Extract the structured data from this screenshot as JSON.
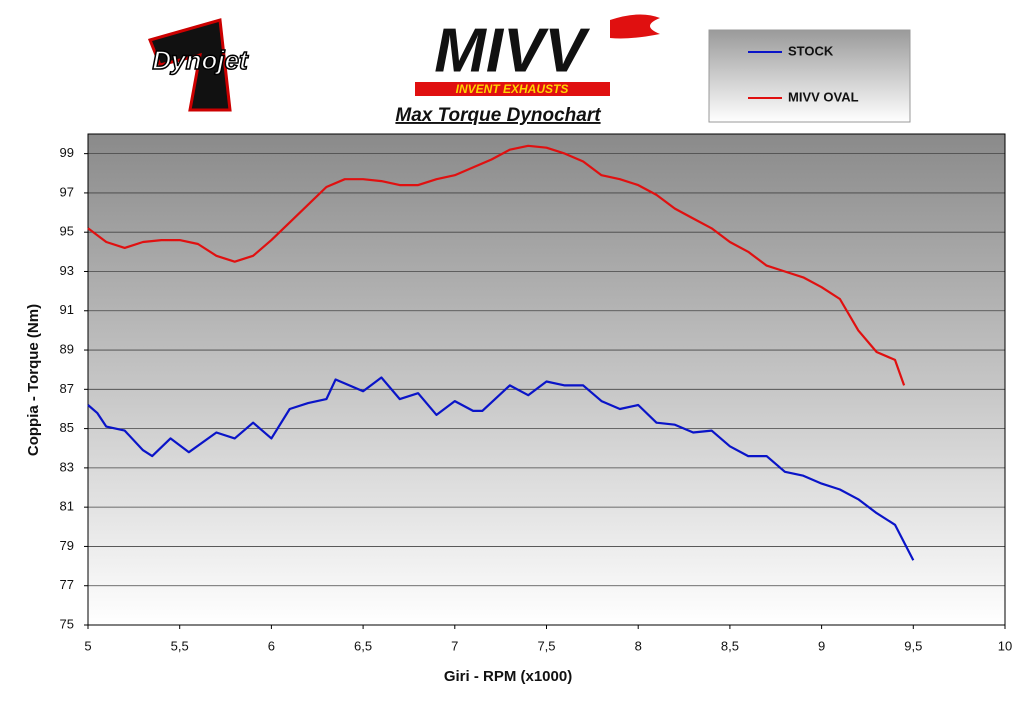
{
  "logos": {
    "left": "Dynojet",
    "brand": "MIVV",
    "brand_tagline": "INVENT EXHAUSTS"
  },
  "chart_data": {
    "type": "line",
    "title": "Max Torque Dynochart",
    "x_label": "Giri - RPM (x1000)",
    "y_label": "Coppia - Torque (Nm)",
    "xlim": [
      5,
      10
    ],
    "xticks": [
      5,
      {
        "value": 5.5,
        "label": "5,5"
      },
      6,
      {
        "value": 6.5,
        "label": "6,5"
      },
      7,
      {
        "value": 7.5,
        "label": "7,5"
      },
      8,
      {
        "value": 8.5,
        "label": "8,5"
      },
      9,
      {
        "value": 9.5,
        "label": "9,5"
      },
      10
    ],
    "ylim": [
      75,
      100
    ],
    "yticks": [
      75,
      77,
      79,
      81,
      83,
      85,
      87,
      89,
      91,
      93,
      95,
      97,
      99
    ],
    "grid": true,
    "legend": "top-right",
    "series": [
      {
        "name": "STOCK",
        "color": "#0a14c8",
        "x": [
          5.0,
          5.05,
          5.1,
          5.2,
          5.3,
          5.35,
          5.45,
          5.55,
          5.7,
          5.8,
          5.9,
          6.0,
          6.1,
          6.2,
          6.3,
          6.35,
          6.5,
          6.6,
          6.7,
          6.8,
          6.9,
          7.0,
          7.1,
          7.15,
          7.3,
          7.4,
          7.5,
          7.6,
          7.7,
          7.8,
          7.9,
          8.0,
          8.1,
          8.2,
          8.3,
          8.4,
          8.5,
          8.6,
          8.7,
          8.8,
          8.9,
          9.0,
          9.1,
          9.2,
          9.3,
          9.4,
          9.5
        ],
        "values": [
          86.2,
          85.8,
          85.1,
          84.9,
          83.9,
          83.6,
          84.5,
          83.8,
          84.8,
          84.5,
          85.3,
          84.5,
          86.0,
          86.3,
          86.5,
          87.5,
          86.9,
          87.6,
          86.5,
          86.8,
          85.7,
          86.4,
          85.9,
          85.9,
          87.2,
          86.7,
          87.4,
          87.2,
          87.2,
          86.4,
          86.0,
          86.2,
          85.3,
          85.2,
          84.8,
          84.9,
          84.1,
          83.6,
          83.6,
          82.8,
          82.6,
          82.2,
          81.9,
          81.4,
          80.7,
          80.1,
          78.3
        ]
      },
      {
        "name": "MIVV OVAL",
        "color": "#e01010",
        "x": [
          5.0,
          5.1,
          5.2,
          5.3,
          5.4,
          5.5,
          5.6,
          5.7,
          5.8,
          5.9,
          6.0,
          6.1,
          6.2,
          6.3,
          6.4,
          6.5,
          6.6,
          6.7,
          6.8,
          6.9,
          7.0,
          7.1,
          7.2,
          7.3,
          7.4,
          7.5,
          7.6,
          7.7,
          7.8,
          7.9,
          8.0,
          8.1,
          8.2,
          8.3,
          8.4,
          8.5,
          8.6,
          8.7,
          8.8,
          8.9,
          9.0,
          9.1,
          9.2,
          9.3,
          9.4,
          9.45
        ],
        "values": [
          95.2,
          94.5,
          94.2,
          94.5,
          94.6,
          94.6,
          94.4,
          93.8,
          93.5,
          93.8,
          94.6,
          95.5,
          96.4,
          97.3,
          97.7,
          97.7,
          97.6,
          97.4,
          97.4,
          97.7,
          97.9,
          98.3,
          98.7,
          99.2,
          99.4,
          99.3,
          99.0,
          98.6,
          97.9,
          97.7,
          97.4,
          96.9,
          96.2,
          95.7,
          95.2,
          94.5,
          94.0,
          93.3,
          93.0,
          92.7,
          92.2,
          91.6,
          90.0,
          88.9,
          88.5,
          87.2
        ]
      }
    ]
  }
}
